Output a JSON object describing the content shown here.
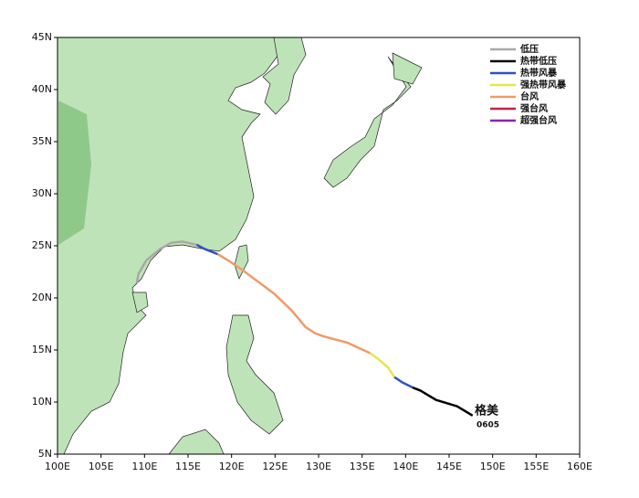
{
  "chart_data": {
    "type": "line",
    "xlim": [
      100,
      160
    ],
    "ylim": [
      5,
      45
    ],
    "xticks": [
      {
        "value": 100,
        "label": "100E"
      },
      {
        "value": 105,
        "label": "105E"
      },
      {
        "value": 110,
        "label": "110E"
      },
      {
        "value": 115,
        "label": "115E"
      },
      {
        "value": 120,
        "label": "120E"
      },
      {
        "value": 125,
        "label": "125E"
      },
      {
        "value": 130,
        "label": "130E"
      },
      {
        "value": 135,
        "label": "135E"
      },
      {
        "value": 140,
        "label": "140E"
      },
      {
        "value": 145,
        "label": "145E"
      },
      {
        "value": 150,
        "label": "150E"
      },
      {
        "value": 155,
        "label": "155E"
      },
      {
        "value": 160,
        "label": "160E"
      }
    ],
    "yticks": [
      {
        "value": 5,
        "label": "5N"
      },
      {
        "value": 10,
        "label": "10N"
      },
      {
        "value": 15,
        "label": "15N"
      },
      {
        "value": 20,
        "label": "20N"
      },
      {
        "value": 25,
        "label": "25N"
      },
      {
        "value": 30,
        "label": "30N"
      },
      {
        "value": 35,
        "label": "35N"
      },
      {
        "value": 40,
        "label": "40N"
      },
      {
        "value": 45,
        "label": "45N"
      }
    ],
    "storm_name": "格美",
    "storm_number": "0605",
    "series": [
      {
        "name": "低压",
        "color": "#a8a8a8",
        "x": [
          116.0,
          114.4,
          113.1,
          111.8,
          110.2,
          109.3,
          109.1
        ],
        "values": [
          25.1,
          25.4,
          25.3,
          24.7,
          23.6,
          22.3,
          21.4
        ]
      },
      {
        "name": "热带低压",
        "color": "#000000",
        "x": [
          147.7,
          145.9,
          143.5,
          141.7,
          140.8
        ],
        "values": [
          8.7,
          9.6,
          10.2,
          11.1,
          11.4
        ]
      },
      {
        "name": "热带风暴",
        "color": "#3050c8",
        "x": [
          140.8,
          139.6,
          138.7
        ],
        "values": [
          11.4,
          11.9,
          12.4
        ]
      },
      {
        "name": "强热带风暴",
        "color": "#e6e64a",
        "x": [
          138.7,
          138.0,
          136.9,
          135.9
        ],
        "values": [
          12.4,
          13.3,
          14.1,
          14.7
        ]
      },
      {
        "name": "台风",
        "color": "#f09a6a",
        "x": [
          135.9,
          133.3,
          130.6,
          129.6,
          128.5,
          126.9,
          124.9,
          123.3,
          121.2,
          119.6,
          118.4
        ],
        "values": [
          14.7,
          15.7,
          16.3,
          16.6,
          17.2,
          18.8,
          20.4,
          21.4,
          22.7,
          23.6,
          24.2
        ]
      },
      {
        "name": "强台风",
        "color": "#c8204a",
        "x": [],
        "values": []
      },
      {
        "name": "超强台风",
        "color": "#8a22b8",
        "x": [],
        "values": []
      }
    ],
    "extra_segments": [
      {
        "color": "#3050c8",
        "x": [
          118.4,
          116.9,
          116.0
        ],
        "values": [
          24.2,
          24.7,
          25.1
        ]
      }
    ]
  }
}
